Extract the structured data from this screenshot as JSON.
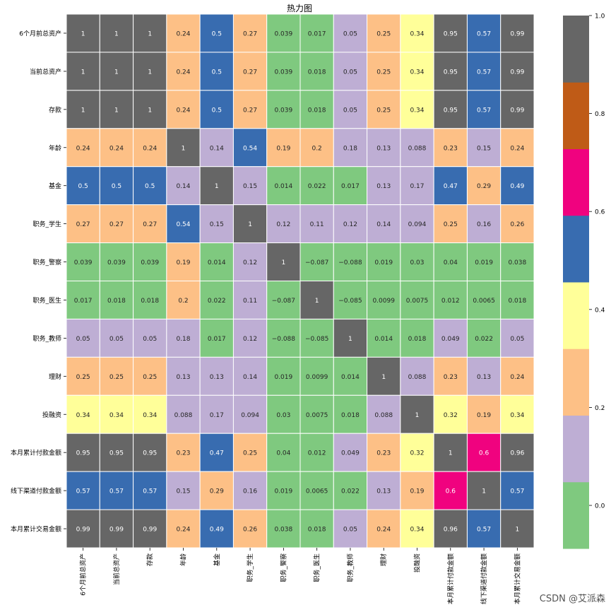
{
  "chart_data": {
    "type": "heatmap",
    "title": "热力图",
    "rows": [
      "6个月前总资产",
      "当前总资产",
      "存款",
      "年龄",
      "基金",
      "职务_学生",
      "职务_警察",
      "职务_医生",
      "职务_教师",
      "理财",
      "投融资",
      "本月累计付款金额",
      "线下渠道付款金额",
      "本月累计交易金额"
    ],
    "columns": [
      "6个月前总资产",
      "当前总资产",
      "存款",
      "年龄",
      "基金",
      "职务_学生",
      "职务_警察",
      "职务_医生",
      "职务_教师",
      "理财",
      "投融资",
      "本月累计付款金额",
      "线下渠道付款金额",
      "本月累计交易金额"
    ],
    "values": [
      [
        1,
        1,
        1,
        0.24,
        0.5,
        0.27,
        0.039,
        0.017,
        0.05,
        0.25,
        0.34,
        0.95,
        0.57,
        0.99
      ],
      [
        1,
        1,
        1,
        0.24,
        0.5,
        0.27,
        0.039,
        0.018,
        0.05,
        0.25,
        0.34,
        0.95,
        0.57,
        0.99
      ],
      [
        1,
        1,
        1,
        0.24,
        0.5,
        0.27,
        0.039,
        0.018,
        0.05,
        0.25,
        0.34,
        0.95,
        0.57,
        0.99
      ],
      [
        0.24,
        0.24,
        0.24,
        1,
        0.14,
        0.54,
        0.19,
        0.2,
        0.18,
        0.13,
        0.088,
        0.23,
        0.15,
        0.24
      ],
      [
        0.5,
        0.5,
        0.5,
        0.14,
        1,
        0.15,
        0.014,
        0.022,
        0.017,
        0.13,
        0.17,
        0.47,
        0.29,
        0.49
      ],
      [
        0.27,
        0.27,
        0.27,
        0.54,
        0.15,
        1,
        0.12,
        0.11,
        0.12,
        0.14,
        0.094,
        0.25,
        0.16,
        0.26
      ],
      [
        0.039,
        0.039,
        0.039,
        0.19,
        0.014,
        0.12,
        1,
        -0.087,
        -0.088,
        0.019,
        0.03,
        0.04,
        0.019,
        0.038
      ],
      [
        0.017,
        0.018,
        0.018,
        0.2,
        0.022,
        0.11,
        -0.087,
        1,
        -0.085,
        0.0099,
        0.0075,
        0.012,
        0.0065,
        0.018
      ],
      [
        0.05,
        0.05,
        0.05,
        0.18,
        0.017,
        0.12,
        -0.088,
        -0.085,
        1,
        0.014,
        0.018,
        0.049,
        0.022,
        0.05
      ],
      [
        0.25,
        0.25,
        0.25,
        0.13,
        0.13,
        0.14,
        0.019,
        0.0099,
        0.014,
        1,
        0.088,
        0.23,
        0.13,
        0.24
      ],
      [
        0.34,
        0.34,
        0.34,
        0.088,
        0.17,
        0.094,
        0.03,
        0.0075,
        0.018,
        0.088,
        1,
        0.32,
        0.19,
        0.34
      ],
      [
        0.95,
        0.95,
        0.95,
        0.23,
        0.47,
        0.25,
        0.04,
        0.012,
        0.049,
        0.23,
        0.32,
        1,
        0.6,
        0.96
      ],
      [
        0.57,
        0.57,
        0.57,
        0.15,
        0.29,
        0.16,
        0.019,
        0.0065,
        0.022,
        0.13,
        0.19,
        0.6,
        1,
        0.57
      ],
      [
        0.99,
        0.99,
        0.99,
        0.24,
        0.49,
        0.26,
        0.038,
        0.018,
        0.05,
        0.24,
        0.34,
        0.96,
        0.57,
        1
      ]
    ],
    "colormap": "Accent",
    "vmin": -0.088,
    "vmax": 1.0,
    "colorbar_ticks": [
      0.0,
      0.2,
      0.4,
      0.6,
      0.8,
      1.0
    ],
    "colorbar_tick_labels": [
      "0.0",
      "0.2",
      "0.4",
      "0.6",
      "0.8",
      "1.0"
    ],
    "palette": [
      "#7fc97f",
      "#beaed4",
      "#fdc086",
      "#ffff99",
      "#386cb0",
      "#f0027f",
      "#bf5b17",
      "#666666"
    ],
    "annotated": true,
    "legend": "colorbar-right"
  },
  "watermark": "CSDN @艾派森"
}
